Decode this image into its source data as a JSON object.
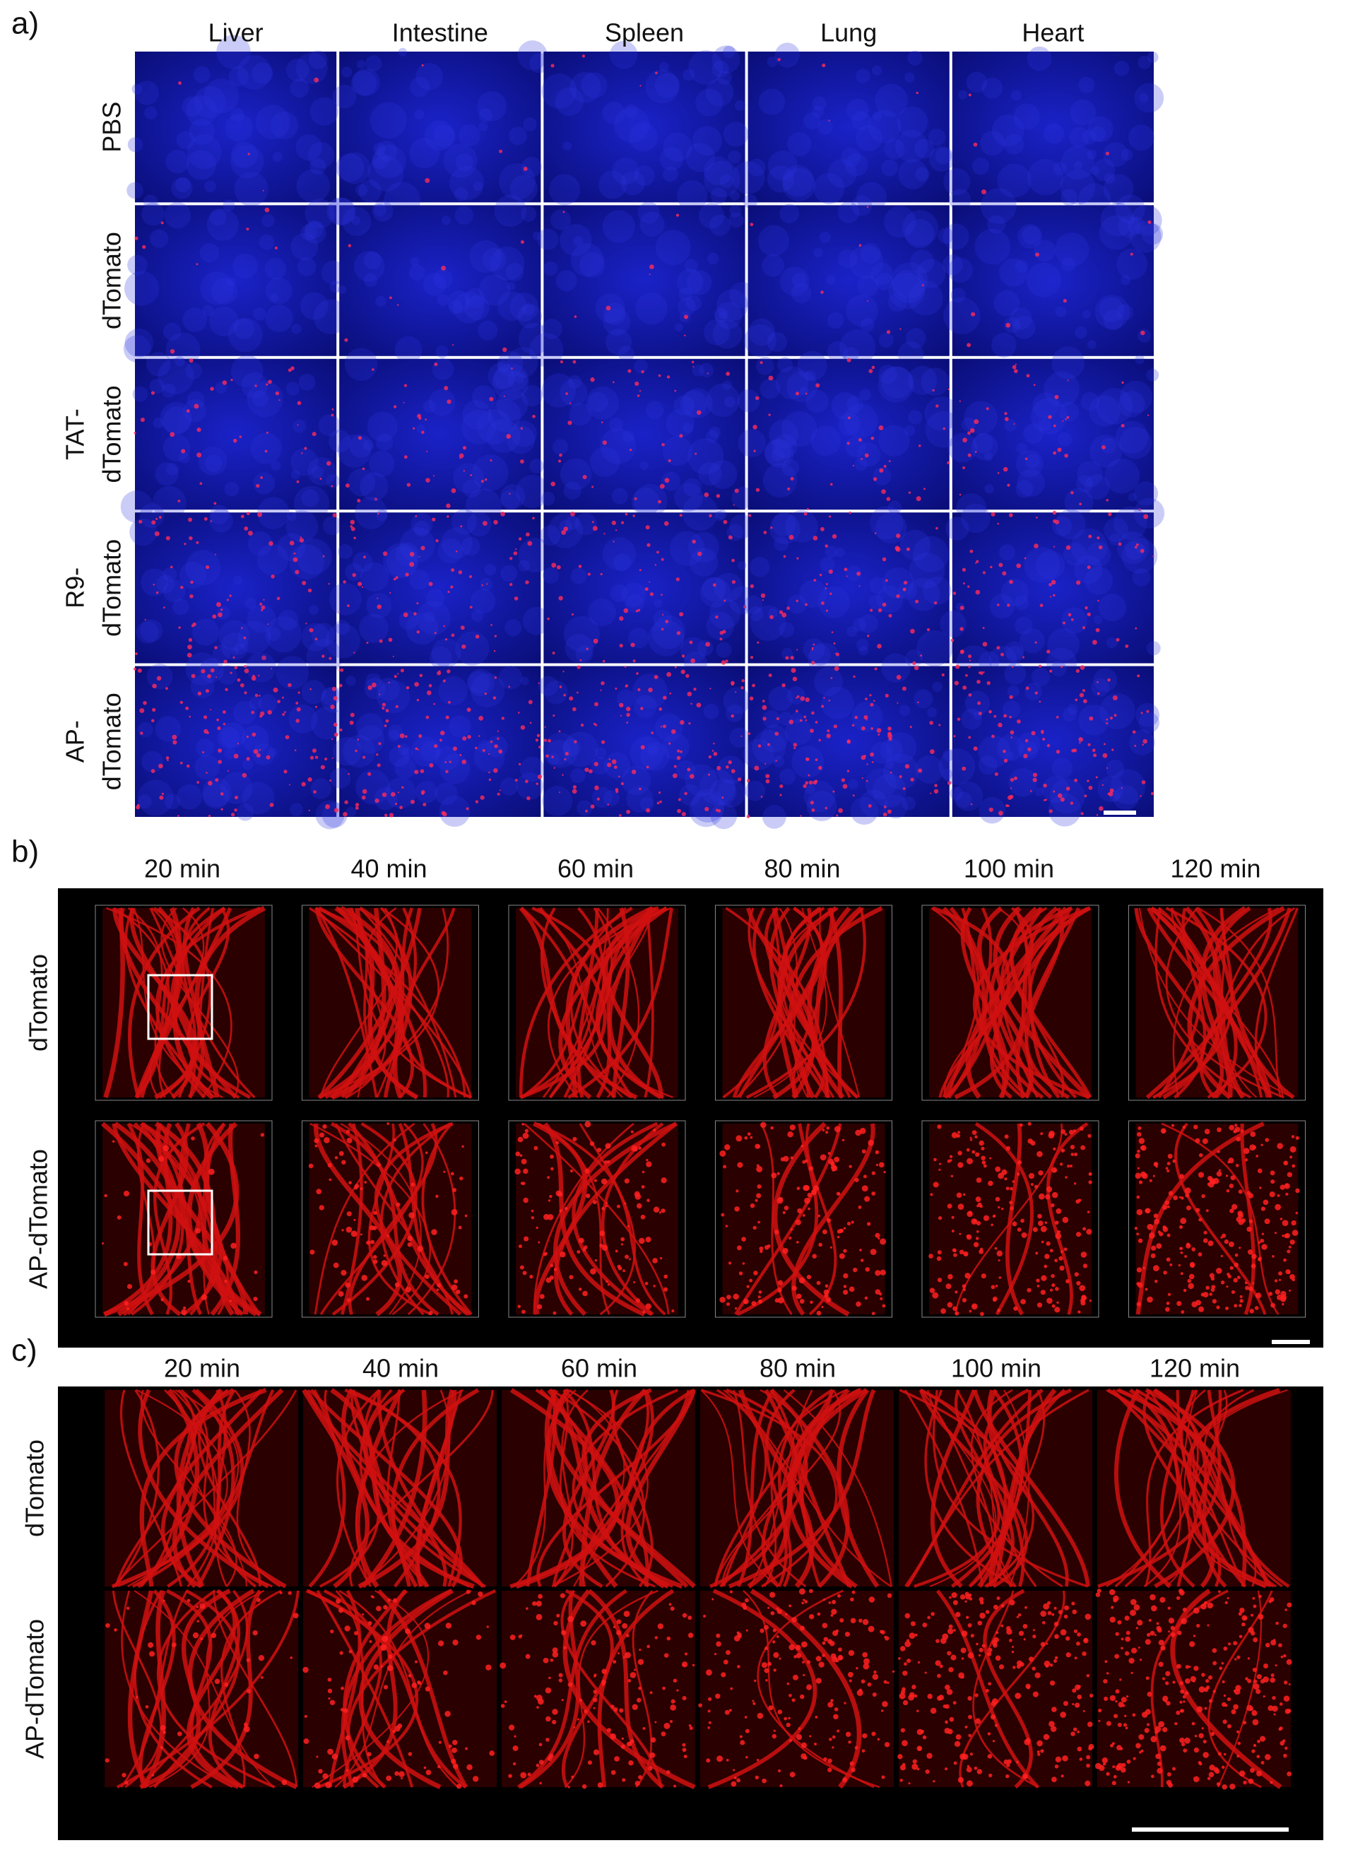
{
  "panel_a": {
    "label": "a)",
    "columns": [
      "Liver",
      "Intestine",
      "Spleen",
      "Lung",
      "Heart"
    ],
    "rows": [
      [
        "PBS"
      ],
      [
        "dTomato"
      ],
      [
        "TAT-",
        "dTomato"
      ],
      [
        "R9-",
        "dTomato"
      ],
      [
        "AP-",
        "dTomato"
      ]
    ]
  },
  "panel_b": {
    "label": "b)",
    "columns": [
      "20 min",
      "40 min",
      "60 min",
      "80 min",
      "100 min",
      "120 min"
    ],
    "rows": [
      "dTomato",
      "AP-dTomato"
    ]
  },
  "panel_c": {
    "label": "c)",
    "columns": [
      "20 min",
      "40 min",
      "60 min",
      "80 min",
      "100 min",
      "120 min"
    ],
    "rows": [
      "dTomato",
      "AP-dTomato"
    ]
  }
}
